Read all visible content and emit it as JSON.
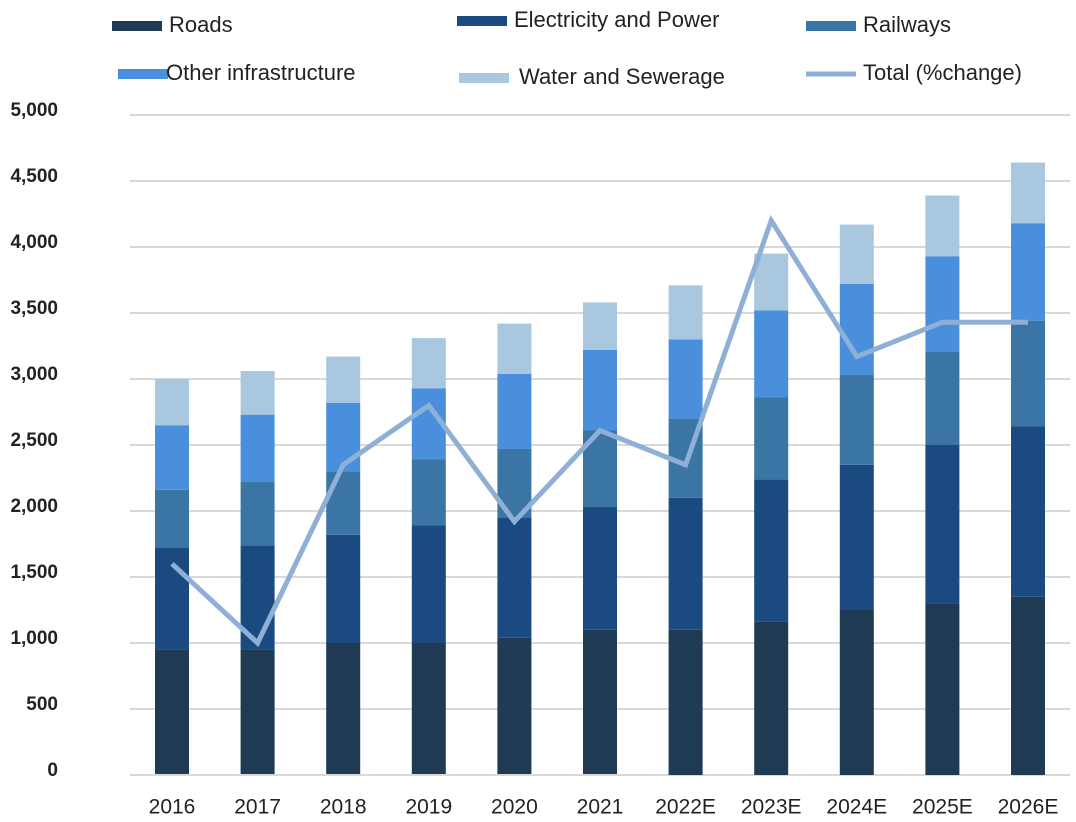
{
  "chart_data": {
    "type": "stacked_bar_line",
    "categories": [
      "2016",
      "2017",
      "2018",
      "2019",
      "2020",
      "2021",
      "2022E",
      "2023E",
      "2024E",
      "2025E",
      "2026E"
    ],
    "series": [
      {
        "name": "Roads",
        "color": "#1f3a53",
        "values": [
          950,
          950,
          1000,
          1000,
          1040,
          1100,
          1100,
          1160,
          1250,
          1300,
          1350
        ]
      },
      {
        "name": "Electricity and Power",
        "color": "#1b4a80",
        "values": [
          775,
          790,
          820,
          890,
          910,
          930,
          1000,
          1080,
          1100,
          1200,
          1290
        ]
      },
      {
        "name": "Railways",
        "color": "#3a75a3",
        "values": [
          435,
          480,
          480,
          500,
          520,
          580,
          600,
          620,
          680,
          710,
          800
        ]
      },
      {
        "name": "Other infrastructure",
        "color": "#4a8fdc",
        "values": [
          490,
          510,
          520,
          540,
          570,
          610,
          600,
          660,
          690,
          720,
          740
        ]
      },
      {
        "name": "Water and Sewerage",
        "color": "#a9c8e0",
        "values": [
          350,
          330,
          350,
          380,
          380,
          360,
          410,
          430,
          450,
          460,
          460
        ]
      },
      {
        "name": "Total (%change)",
        "type": "line",
        "color": "#8fb0d6",
        "values": [
          1600,
          1000,
          2350,
          2800,
          1920,
          2610,
          2350,
          4200,
          3170,
          3430,
          3430
        ]
      }
    ],
    "ylim": [
      0,
      5000
    ],
    "yticks": [
      0,
      500,
      {
        "value": 1000,
        "label": "1,000"
      },
      {
        "value": 1500,
        "label": "1,500"
      },
      {
        "value": 2000,
        "label": "2,000"
      },
      {
        "value": 2500,
        "label": "2,500"
      },
      {
        "value": 3000,
        "label": "3,000"
      },
      {
        "value": 3500,
        "label": "3,500"
      },
      {
        "value": 4000,
        "label": "4,000"
      },
      {
        "value": 4500,
        "label": "4,500"
      },
      {
        "value": 5000,
        "label": "5,000"
      }
    ],
    "grid": true
  }
}
